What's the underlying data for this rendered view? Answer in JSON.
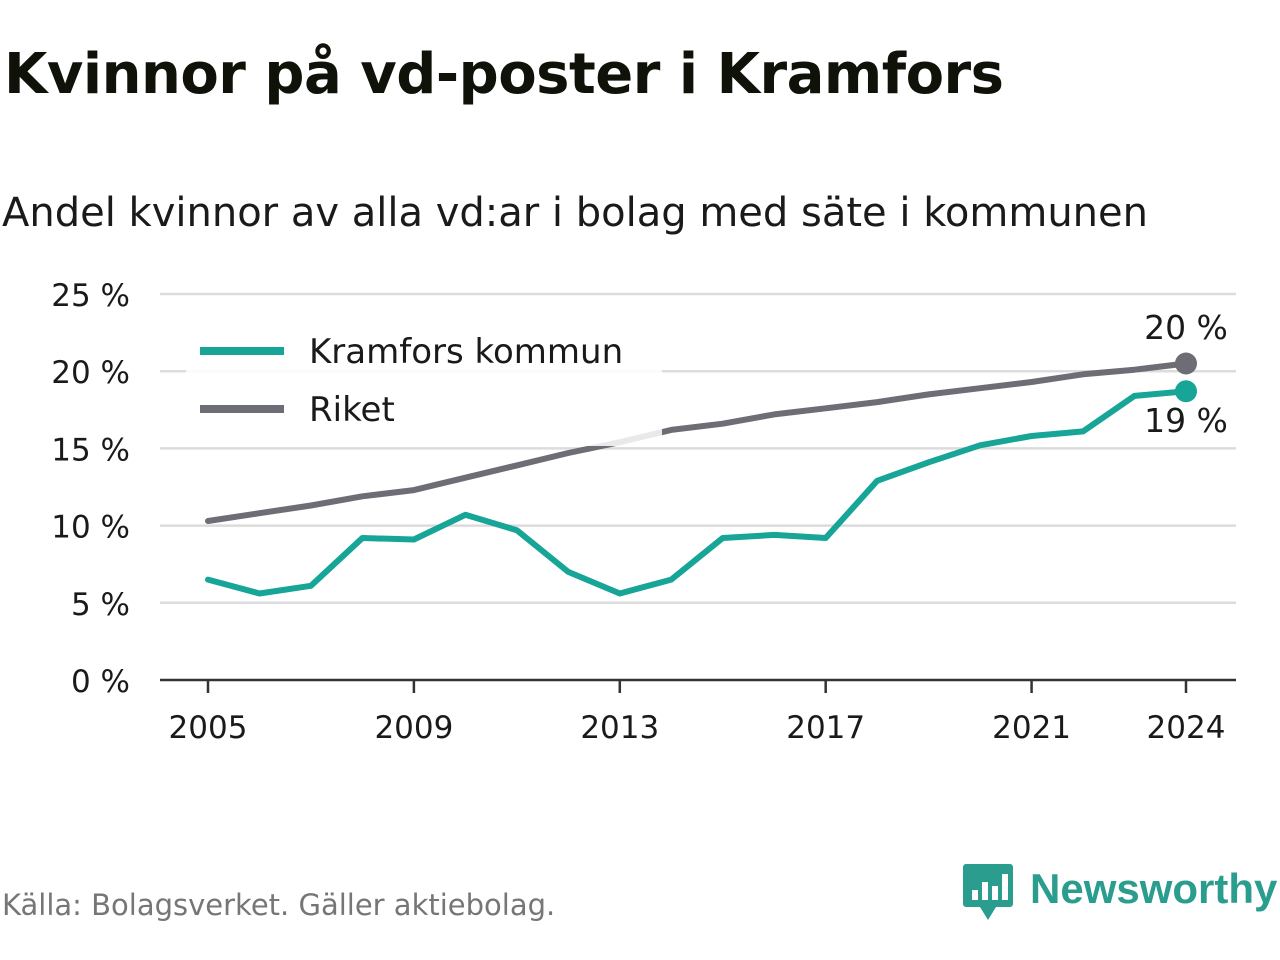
{
  "title": "Kvinnor på vd-poster i Kramfors",
  "subtitle": "Andel kvinnor av alla vd:ar i bolag med säte i kommunen",
  "source": "Källa: Bolagsverket. Gäller aktiebolag.",
  "brand": "Newsworthy",
  "colors": {
    "kramfors": "#16a596",
    "riket": "#6e6d76",
    "grid": "#dcdcdc",
    "brand": "#2a9d8f"
  },
  "chart_data": {
    "type": "line",
    "x": [
      2005,
      2006,
      2007,
      2008,
      2009,
      2010,
      2011,
      2012,
      2013,
      2014,
      2015,
      2016,
      2017,
      2018,
      2019,
      2020,
      2021,
      2022,
      2023,
      2024
    ],
    "series": [
      {
        "name": "Kramfors kommun",
        "values": [
          6.5,
          5.6,
          6.1,
          9.2,
          9.1,
          10.7,
          9.7,
          7.0,
          5.6,
          6.5,
          9.2,
          9.4,
          9.2,
          12.9,
          14.1,
          15.2,
          15.8,
          16.1,
          18.4,
          18.7
        ],
        "end_label": "19 %"
      },
      {
        "name": "Riket",
        "values": [
          10.3,
          10.8,
          11.3,
          11.9,
          12.3,
          13.1,
          13.9,
          14.7,
          15.4,
          16.2,
          16.6,
          17.2,
          17.6,
          18.0,
          18.5,
          18.9,
          19.3,
          19.8,
          20.1,
          20.5
        ],
        "end_label": "20 %"
      }
    ],
    "ylim": [
      0,
      25
    ],
    "yticks": [
      "0 %",
      "5 %",
      "10 %",
      "15 %",
      "20 %",
      "25 %"
    ],
    "ytick_values": [
      0,
      5,
      10,
      15,
      20,
      25
    ],
    "xticks": [
      2005,
      2009,
      2013,
      2017,
      2021,
      2024
    ],
    "xtick_labels": [
      "2005",
      "2009",
      "2013",
      "2017",
      "2021",
      "2024"
    ],
    "legend": "top-left",
    "grid": true,
    "xlabel": "",
    "ylabel": ""
  }
}
